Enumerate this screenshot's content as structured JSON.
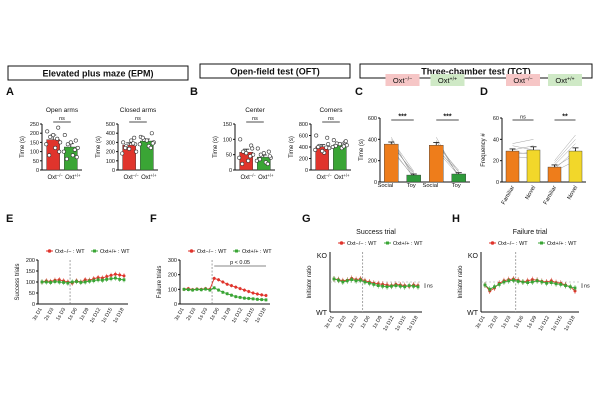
{
  "sections": [
    {
      "title": "Elevated plus maze (EPM)"
    },
    {
      "title": "Open-field test (OFT)"
    },
    {
      "title": "Three-chamber test (TCT)"
    }
  ],
  "colors": {
    "ko": "#e0342c",
    "wt": "#3aa535",
    "social": "#ee7d1b",
    "toy": "#2e9a3a",
    "familiar": "#ee7d1b",
    "novel": "#f2d72a",
    "koBadge": "#f6c6c6",
    "wtBadge": "#cfe9c6"
  },
  "geno": {
    "ko_sup": "−/−",
    "wt_sup": "+/+"
  },
  "chart_data": [
    {
      "type": "bar",
      "panel": "A",
      "title": "Open arms",
      "ylabel": "Time (s)",
      "ylim": [
        0,
        250
      ],
      "yticks": [
        "0",
        "50",
        "100",
        "150",
        "200",
        "250"
      ],
      "categories": [
        "Oxt",
        "Oxt"
      ],
      "values": [
        165,
        125
      ],
      "errors": [
        25,
        18
      ],
      "significance": "ns",
      "points": [
        [
          210,
          230,
          180,
          150,
          140,
          120,
          100,
          80,
          190,
          170
        ],
        [
          190,
          160,
          140,
          120,
          100,
          80,
          70,
          60,
          150,
          110
        ]
      ]
    },
    {
      "type": "bar",
      "panel": "A",
      "title": "Closed arms",
      "ylabel": "Time (s)",
      "ylim": [
        0,
        500
      ],
      "yticks": [
        "0",
        "100",
        "200",
        "300",
        "400",
        "500"
      ],
      "categories": [
        "Oxt",
        "Oxt"
      ],
      "values": [
        270,
        315
      ],
      "errors": [
        25,
        22
      ],
      "significance": "ns",
      "points": [
        [
          300,
          350,
          260,
          200,
          180,
          320,
          280,
          240,
          230,
          290
        ],
        [
          360,
          400,
          330,
          300,
          280,
          260,
          290,
          350,
          320,
          240
        ]
      ]
    },
    {
      "type": "bar",
      "panel": "B",
      "title": "Center",
      "ylabel": "Time (s)",
      "ylim": [
        0,
        150
      ],
      "yticks": [
        "0",
        "50",
        "100",
        "150"
      ],
      "categories": [
        "Oxt",
        "Oxt"
      ],
      "values": [
        58,
        42
      ],
      "errors": [
        10,
        7
      ],
      "significance": "ns",
      "points": [
        [
          100,
          80,
          60,
          50,
          40,
          30,
          70,
          20,
          55,
          45
        ],
        [
          70,
          60,
          50,
          40,
          30,
          25,
          45,
          35,
          55,
          20
        ]
      ]
    },
    {
      "type": "bar",
      "panel": "B",
      "title": "Corners",
      "ylabel": "Time (s)",
      "ylim": [
        0,
        800
      ],
      "yticks": [
        "0",
        "200",
        "400",
        "600",
        "800"
      ],
      "categories": [
        "Oxt",
        "Oxt"
      ],
      "values": [
        405,
        440
      ],
      "errors": [
        35,
        30
      ],
      "significance": "ns",
      "points": [
        [
          600,
          560,
          420,
          380,
          350,
          300,
          450,
          400,
          330,
          390
        ],
        [
          520,
          480,
          460,
          430,
          400,
          380,
          500,
          420,
          450,
          410
        ]
      ]
    },
    {
      "type": "bar",
      "panel": "C",
      "ylabel": "Time (s)",
      "ylim": [
        0,
        600
      ],
      "yticks": [
        "0",
        "200",
        "400",
        "600"
      ],
      "groups": [
        "Oxt",
        "Oxt"
      ],
      "categories": [
        "Social",
        "Toy",
        "Social",
        "Toy"
      ],
      "values": [
        355,
        65,
        345,
        75
      ],
      "errors": [
        20,
        10,
        25,
        12
      ],
      "significance": [
        "***",
        "***"
      ]
    },
    {
      "type": "bar",
      "panel": "D",
      "ylabel": "Frequency #",
      "ylim": [
        0,
        60
      ],
      "yticks": [
        "0",
        "20",
        "40",
        "60"
      ],
      "groups": [
        "Oxt",
        "Oxt"
      ],
      "categories": [
        "Familiar",
        "Novel",
        "Familiar",
        "Novel"
      ],
      "values": [
        29,
        30,
        14,
        29
      ],
      "errors": [
        2,
        3,
        2,
        3
      ],
      "significance": [
        "ns",
        "**"
      ]
    },
    {
      "type": "line",
      "panel": "E",
      "ylabel": "Success trials",
      "ylim": [
        0,
        200
      ],
      "yticks": [
        "0",
        "50",
        "100",
        "150",
        "200"
      ],
      "xticks": [
        "3s D1",
        "2s D3",
        "1s D3",
        "1s D6",
        "1s D9",
        "1s D12",
        "1s D15",
        "1s D18"
      ],
      "legend": [
        "Oxt−/− : WT",
        "Oxt+/+ : WT"
      ],
      "series": [
        {
          "name": "Oxt−/−",
          "values": [
            100,
            105,
            102,
            108,
            110,
            105,
            100,
            95,
            105,
            100,
            110,
            108,
            115,
            120,
            118,
            125,
            130,
            135,
            132,
            128
          ]
        },
        {
          "name": "Oxt+/+",
          "values": [
            100,
            100,
            98,
            102,
            100,
            98,
            95,
            100,
            102,
            98,
            100,
            104,
            106,
            110,
            108,
            112,
            115,
            118,
            112,
            110
          ]
        }
      ]
    },
    {
      "type": "line",
      "panel": "F",
      "ylabel": "Failure trials",
      "ylim": [
        0,
        300
      ],
      "yticks": [
        "0",
        "100",
        "200",
        "300"
      ],
      "xticks": [
        "3s D1",
        "2s D3",
        "1s D3",
        "1s D6",
        "1s D9",
        "1s D12",
        "1s D15",
        "1s D18"
      ],
      "legend": [
        "Oxt−/− : WT",
        "Oxt+/+ : WT"
      ],
      "annotation": "p < 0.05",
      "series": [
        {
          "name": "Oxt−/−",
          "values": [
            100,
            105,
            98,
            102,
            100,
            105,
            100,
            175,
            165,
            150,
            135,
            125,
            115,
            105,
            95,
            85,
            75,
            68,
            62,
            58
          ]
        },
        {
          "name": "Oxt+/+",
          "values": [
            100,
            98,
            95,
            100,
            97,
            102,
            95,
            110,
            95,
            80,
            70,
            60,
            50,
            45,
            40,
            38,
            35,
            32,
            30,
            28
          ]
        }
      ]
    },
    {
      "type": "line",
      "panel": "G",
      "title": "Success trial",
      "ylabel": "Initiator ratio",
      "yticks": [
        "KO",
        "WT"
      ],
      "xticks": [
        "3s D1",
        "2s D3",
        "1s D3",
        "1s D6",
        "1s D9",
        "1s D12",
        "1s D15",
        "1s D18"
      ],
      "legend": [
        "Oxt−/− : WT",
        "Oxt+/+ : WT"
      ],
      "significance": "ns",
      "series": [
        {
          "name": "Oxt−/−",
          "values": [
            0.55,
            0.54,
            0.52,
            0.53,
            0.56,
            0.54,
            0.55,
            0.52,
            0.5,
            0.48,
            0.47,
            0.46,
            0.45,
            0.44,
            0.46,
            0.45,
            0.44,
            0.43,
            0.45,
            0.44
          ]
        },
        {
          "name": "Oxt+/+",
          "values": [
            0.55,
            0.53,
            0.5,
            0.52,
            0.54,
            0.52,
            0.53,
            0.5,
            0.48,
            0.46,
            0.44,
            0.43,
            0.42,
            0.43,
            0.44,
            0.43,
            0.42,
            0.44,
            0.43,
            0.42
          ]
        }
      ]
    },
    {
      "type": "line",
      "panel": "H",
      "title": "Failure trial",
      "ylabel": "Initiator ratio",
      "yticks": [
        "KO",
        "WT"
      ],
      "xticks": [
        "3s D1",
        "2s D3",
        "1s D3",
        "1s D6",
        "1s D9",
        "1s D12",
        "1s D15",
        "1s D18"
      ],
      "legend": [
        "Oxt−/− : WT",
        "Oxt+/+ : WT"
      ],
      "significance": "ns",
      "series": [
        {
          "name": "Oxt−/−",
          "values": [
            0.45,
            0.35,
            0.4,
            0.48,
            0.52,
            0.54,
            0.55,
            0.53,
            0.5,
            0.52,
            0.54,
            0.53,
            0.51,
            0.5,
            0.52,
            0.49,
            0.48,
            0.45,
            0.42,
            0.35
          ]
        },
        {
          "name": "Oxt+/+",
          "values": [
            0.45,
            0.38,
            0.42,
            0.46,
            0.5,
            0.52,
            0.53,
            0.51,
            0.5,
            0.49,
            0.5,
            0.52,
            0.5,
            0.48,
            0.49,
            0.47,
            0.46,
            0.44,
            0.42,
            0.4
          ]
        }
      ]
    }
  ]
}
